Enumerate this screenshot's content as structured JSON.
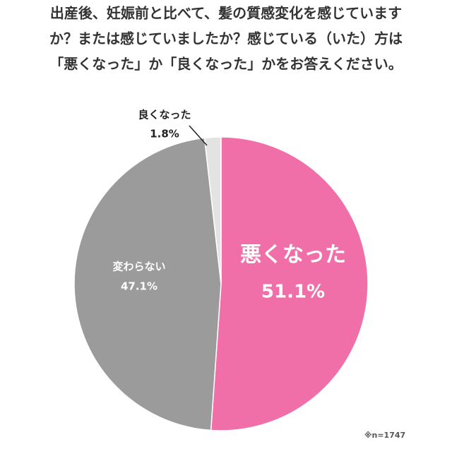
{
  "chart_data": {
    "type": "pie",
    "title": [
      "出産後、妊娠前と比べて、髪の質感変化を感じています",
      "か？または感じていましたか？感じている（いた）方は",
      "「悪くなった」か「良くなった」かをお答えください。"
    ],
    "categories": [
      "悪くなった",
      "変わらない",
      "良くなった"
    ],
    "values": [
      51.1,
      47.1,
      1.8
    ],
    "value_labels": [
      "51.1%",
      "47.1%",
      "1.8%"
    ],
    "colors": [
      "#f16fa8",
      "#9b9b9b",
      "#e3e3e3"
    ],
    "note": "※n=1747"
  }
}
